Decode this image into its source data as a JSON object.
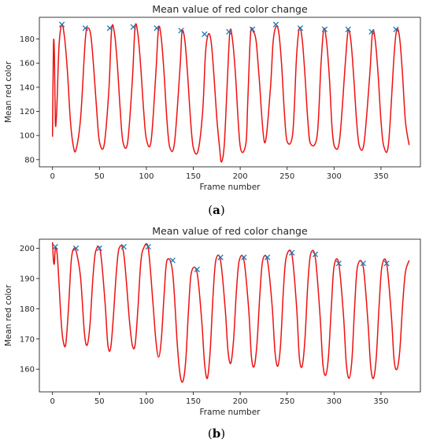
{
  "colors": {
    "signal": "#ee1111",
    "peak_marker": "#1f77b4",
    "axis": "#262626"
  },
  "chart_data": [
    {
      "id": "a",
      "caption": {
        "open": "(",
        "letter": "a",
        "close": ")"
      },
      "type": "line",
      "title": "Mean value of red color change",
      "xlabel": "Frame number",
      "ylabel": "Mean red color",
      "xlim": [
        -14,
        392
      ],
      "ylim": [
        74,
        198
      ],
      "xticks": [
        0,
        50,
        100,
        150,
        200,
        250,
        300,
        350
      ],
      "yticks": [
        80,
        100,
        120,
        140,
        160,
        180
      ],
      "grid": false,
      "series": [
        {
          "marker": "line",
          "x": [
            0,
            1,
            2,
            3,
            4,
            5,
            7,
            10,
            13,
            16,
            19,
            22,
            25,
            30,
            35,
            38,
            41,
            44,
            47,
            50,
            55,
            60,
            63,
            66,
            69,
            72,
            75,
            80,
            85,
            88,
            91,
            94,
            97,
            100,
            105,
            110,
            113,
            116,
            119,
            122,
            125,
            130,
            136,
            138,
            141,
            144,
            147,
            150,
            155,
            160,
            163,
            166,
            169,
            172,
            175,
            178,
            180,
            183,
            186,
            189,
            192,
            195,
            200,
            206,
            208,
            211,
            214,
            217,
            220,
            226,
            232,
            235,
            238,
            241,
            244,
            247,
            250,
            256,
            260,
            263,
            266,
            269,
            272,
            275,
            282,
            286,
            289,
            292,
            295,
            298,
            301,
            306,
            312,
            315,
            318,
            321,
            324,
            327,
            332,
            338,
            341,
            344,
            347,
            350,
            353,
            358,
            364,
            367,
            370,
            373,
            376,
            380
          ],
          "y": [
            99,
            174,
            168,
            112,
            113,
            131,
            175,
            192,
            180,
            152,
            113,
            92,
            88,
            115,
            180,
            189,
            182,
            155,
            122,
            95,
            92,
            137,
            188,
            185,
            160,
            123,
            95,
            94,
            145,
            190,
            184,
            157,
            122,
            97,
            95,
            150,
            189,
            180,
            150,
            112,
            90,
            94,
            158,
            186,
            179,
            150,
            114,
            90,
            87,
            120,
            168,
            184,
            178,
            150,
            115,
            90,
            78,
            92,
            140,
            186,
            178,
            150,
            91,
            93,
            127,
            184,
            186,
            178,
            150,
            94,
            137,
            177,
            190,
            186,
            160,
            120,
            95,
            102,
            165,
            189,
            180,
            150,
            113,
            93,
            100,
            158,
            188,
            178,
            148,
            105,
            90,
            97,
            160,
            187,
            178,
            148,
            112,
            91,
            94,
            150,
            186,
            178,
            150,
            112,
            91,
            93,
            167,
            188,
            180,
            150,
            112,
            92
          ]
        },
        {
          "marker": "x",
          "x": [
            10,
            35,
            61,
            86,
            111,
            137,
            162,
            188,
            213,
            238,
            264,
            290,
            315,
            340,
            366
          ],
          "y": [
            192,
            189,
            189,
            190,
            189,
            187,
            184,
            186,
            188,
            192,
            189,
            188,
            188,
            186,
            188
          ]
        }
      ]
    },
    {
      "id": "b",
      "caption": {
        "open": "(",
        "letter": "b",
        "close": ")"
      },
      "type": "line",
      "title": "Mean value of red color change",
      "xlabel": "Frame number",
      "ylabel": "Mean red color",
      "xlim": [
        -14,
        392
      ],
      "ylim": [
        152.5,
        203
      ],
      "xticks": [
        0,
        50,
        100,
        150,
        200,
        250,
        300,
        350
      ],
      "yticks": [
        160,
        170,
        180,
        190,
        200
      ],
      "grid": false,
      "series": [
        {
          "marker": "line",
          "x": [
            0,
            1,
            2,
            3,
            5,
            7,
            9,
            11,
            14,
            17,
            20,
            23,
            26,
            30,
            34,
            37,
            40,
            43,
            46,
            51,
            56,
            59,
            62,
            65,
            68,
            71,
            76,
            82,
            85,
            88,
            91,
            94,
            97,
            102,
            107,
            110,
            113,
            116,
            119,
            122,
            128,
            133,
            136,
            139,
            142,
            145,
            148,
            154,
            159,
            162,
            165,
            168,
            171,
            174,
            179,
            184,
            187,
            190,
            193,
            196,
            199,
            204,
            209,
            212,
            215,
            218,
            221,
            224,
            229,
            234,
            237,
            240,
            243,
            246,
            249,
            255,
            260,
            263,
            266,
            269,
            272,
            275,
            280,
            285,
            288,
            291,
            294,
            297,
            300,
            305,
            310,
            313,
            316,
            319,
            322,
            325,
            331,
            336,
            339,
            342,
            345,
            348,
            351,
            356,
            361,
            364,
            367,
            370,
            373,
            376,
            380
          ],
          "y": [
            202,
            196,
            195,
            200,
            198,
            188,
            177,
            170,
            168,
            180,
            196,
            200,
            198,
            190,
            172,
            168,
            175,
            190,
            199,
            199,
            182,
            168,
            167,
            178,
            192,
            200,
            198,
            176,
            168,
            168,
            180,
            195,
            200,
            200,
            182,
            170,
            164,
            170,
            185,
            196,
            192,
            168,
            158,
            156,
            163,
            180,
            192,
            192,
            176,
            162,
            157,
            166,
            184,
            196,
            196,
            180,
            166,
            162,
            170,
            186,
            196,
            196,
            180,
            164,
            161,
            169,
            185,
            196,
            196,
            181,
            166,
            161,
            168,
            186,
            197,
            198,
            181,
            164,
            161,
            170,
            188,
            198,
            197,
            178,
            162,
            158,
            164,
            180,
            194,
            195,
            178,
            162,
            157,
            163,
            181,
            194,
            194,
            176,
            161,
            157,
            164,
            181,
            194,
            195,
            178,
            163,
            160,
            166,
            181,
            192,
            196
          ]
        },
        {
          "marker": "x",
          "x": [
            3,
            25,
            50,
            76,
            102,
            128,
            154,
            179,
            204,
            229,
            255,
            280,
            305,
            331,
            356
          ],
          "y": [
            200.5,
            200,
            200,
            200.5,
            200.5,
            196,
            193,
            197,
            197,
            197,
            198.5,
            198,
            195,
            195,
            195
          ]
        }
      ]
    }
  ]
}
